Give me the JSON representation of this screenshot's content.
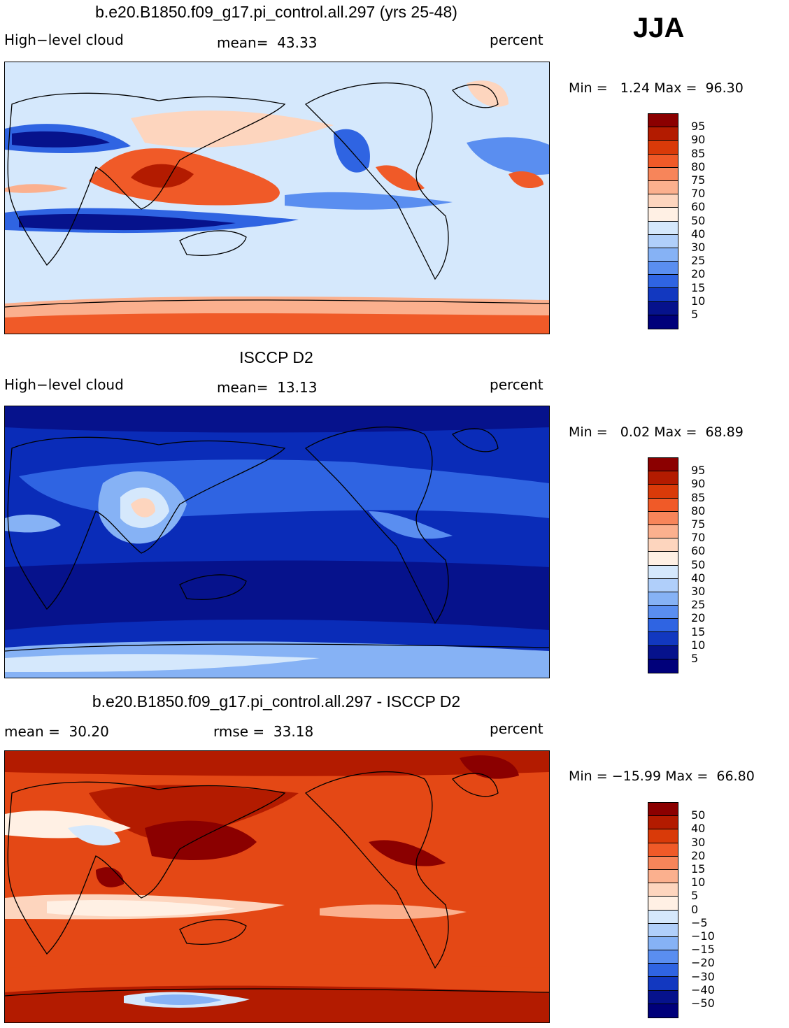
{
  "season": "JJA",
  "panels": [
    {
      "title": "b.e20.B1850.f09_g17.pi_control.all.297 (yrs 25-48)",
      "left_label": "High−level cloud",
      "center_label": "mean=  43.33",
      "right_label": "percent",
      "min_max": "Min =   1.24 Max =  96.30",
      "colorbar_levels": [
        "95",
        "90",
        "85",
        "80",
        "75",
        "70",
        "60",
        "50",
        "40",
        "30",
        "25",
        "20",
        "15",
        "10",
        "5"
      ],
      "field_style": "model"
    },
    {
      "title": "ISCCP D2",
      "left_label": "High−level cloud",
      "center_label": "mean=  13.13",
      "right_label": "percent",
      "min_max": "Min =   0.02 Max =  68.89",
      "colorbar_levels": [
        "95",
        "90",
        "85",
        "80",
        "75",
        "70",
        "60",
        "50",
        "40",
        "30",
        "25",
        "20",
        "15",
        "10",
        "5"
      ],
      "field_style": "obs"
    },
    {
      "title": "b.e20.B1850.f09_g17.pi_control.all.297 - ISCCP D2",
      "left_label": "mean =  30.20",
      "center_label": "rmse =  33.18",
      "right_label": "percent",
      "min_max": "Min = −15.99 Max =  66.80",
      "colorbar_levels": [
        "50",
        "40",
        "30",
        "20",
        "15",
        "10",
        "5",
        "0",
        "−5",
        "−10",
        "−15",
        "−20",
        "−30",
        "−40",
        "−50"
      ],
      "field_style": "diff"
    }
  ],
  "colors": {
    "palette": [
      "#8b0000",
      "#b31b00",
      "#d93a09",
      "#f05a28",
      "#f7855a",
      "#fbb08e",
      "#fdd5be",
      "#fff0e4",
      "#d5e8fc",
      "#b0cffa",
      "#86b2f5",
      "#5a8ef0",
      "#2f64e2",
      "#1238c0",
      "#06128c",
      "#00007a"
    ],
    "model_bg": "#d5e8fc",
    "obs_bg": "#0a2cb8",
    "diff_bg": "#e44815"
  }
}
